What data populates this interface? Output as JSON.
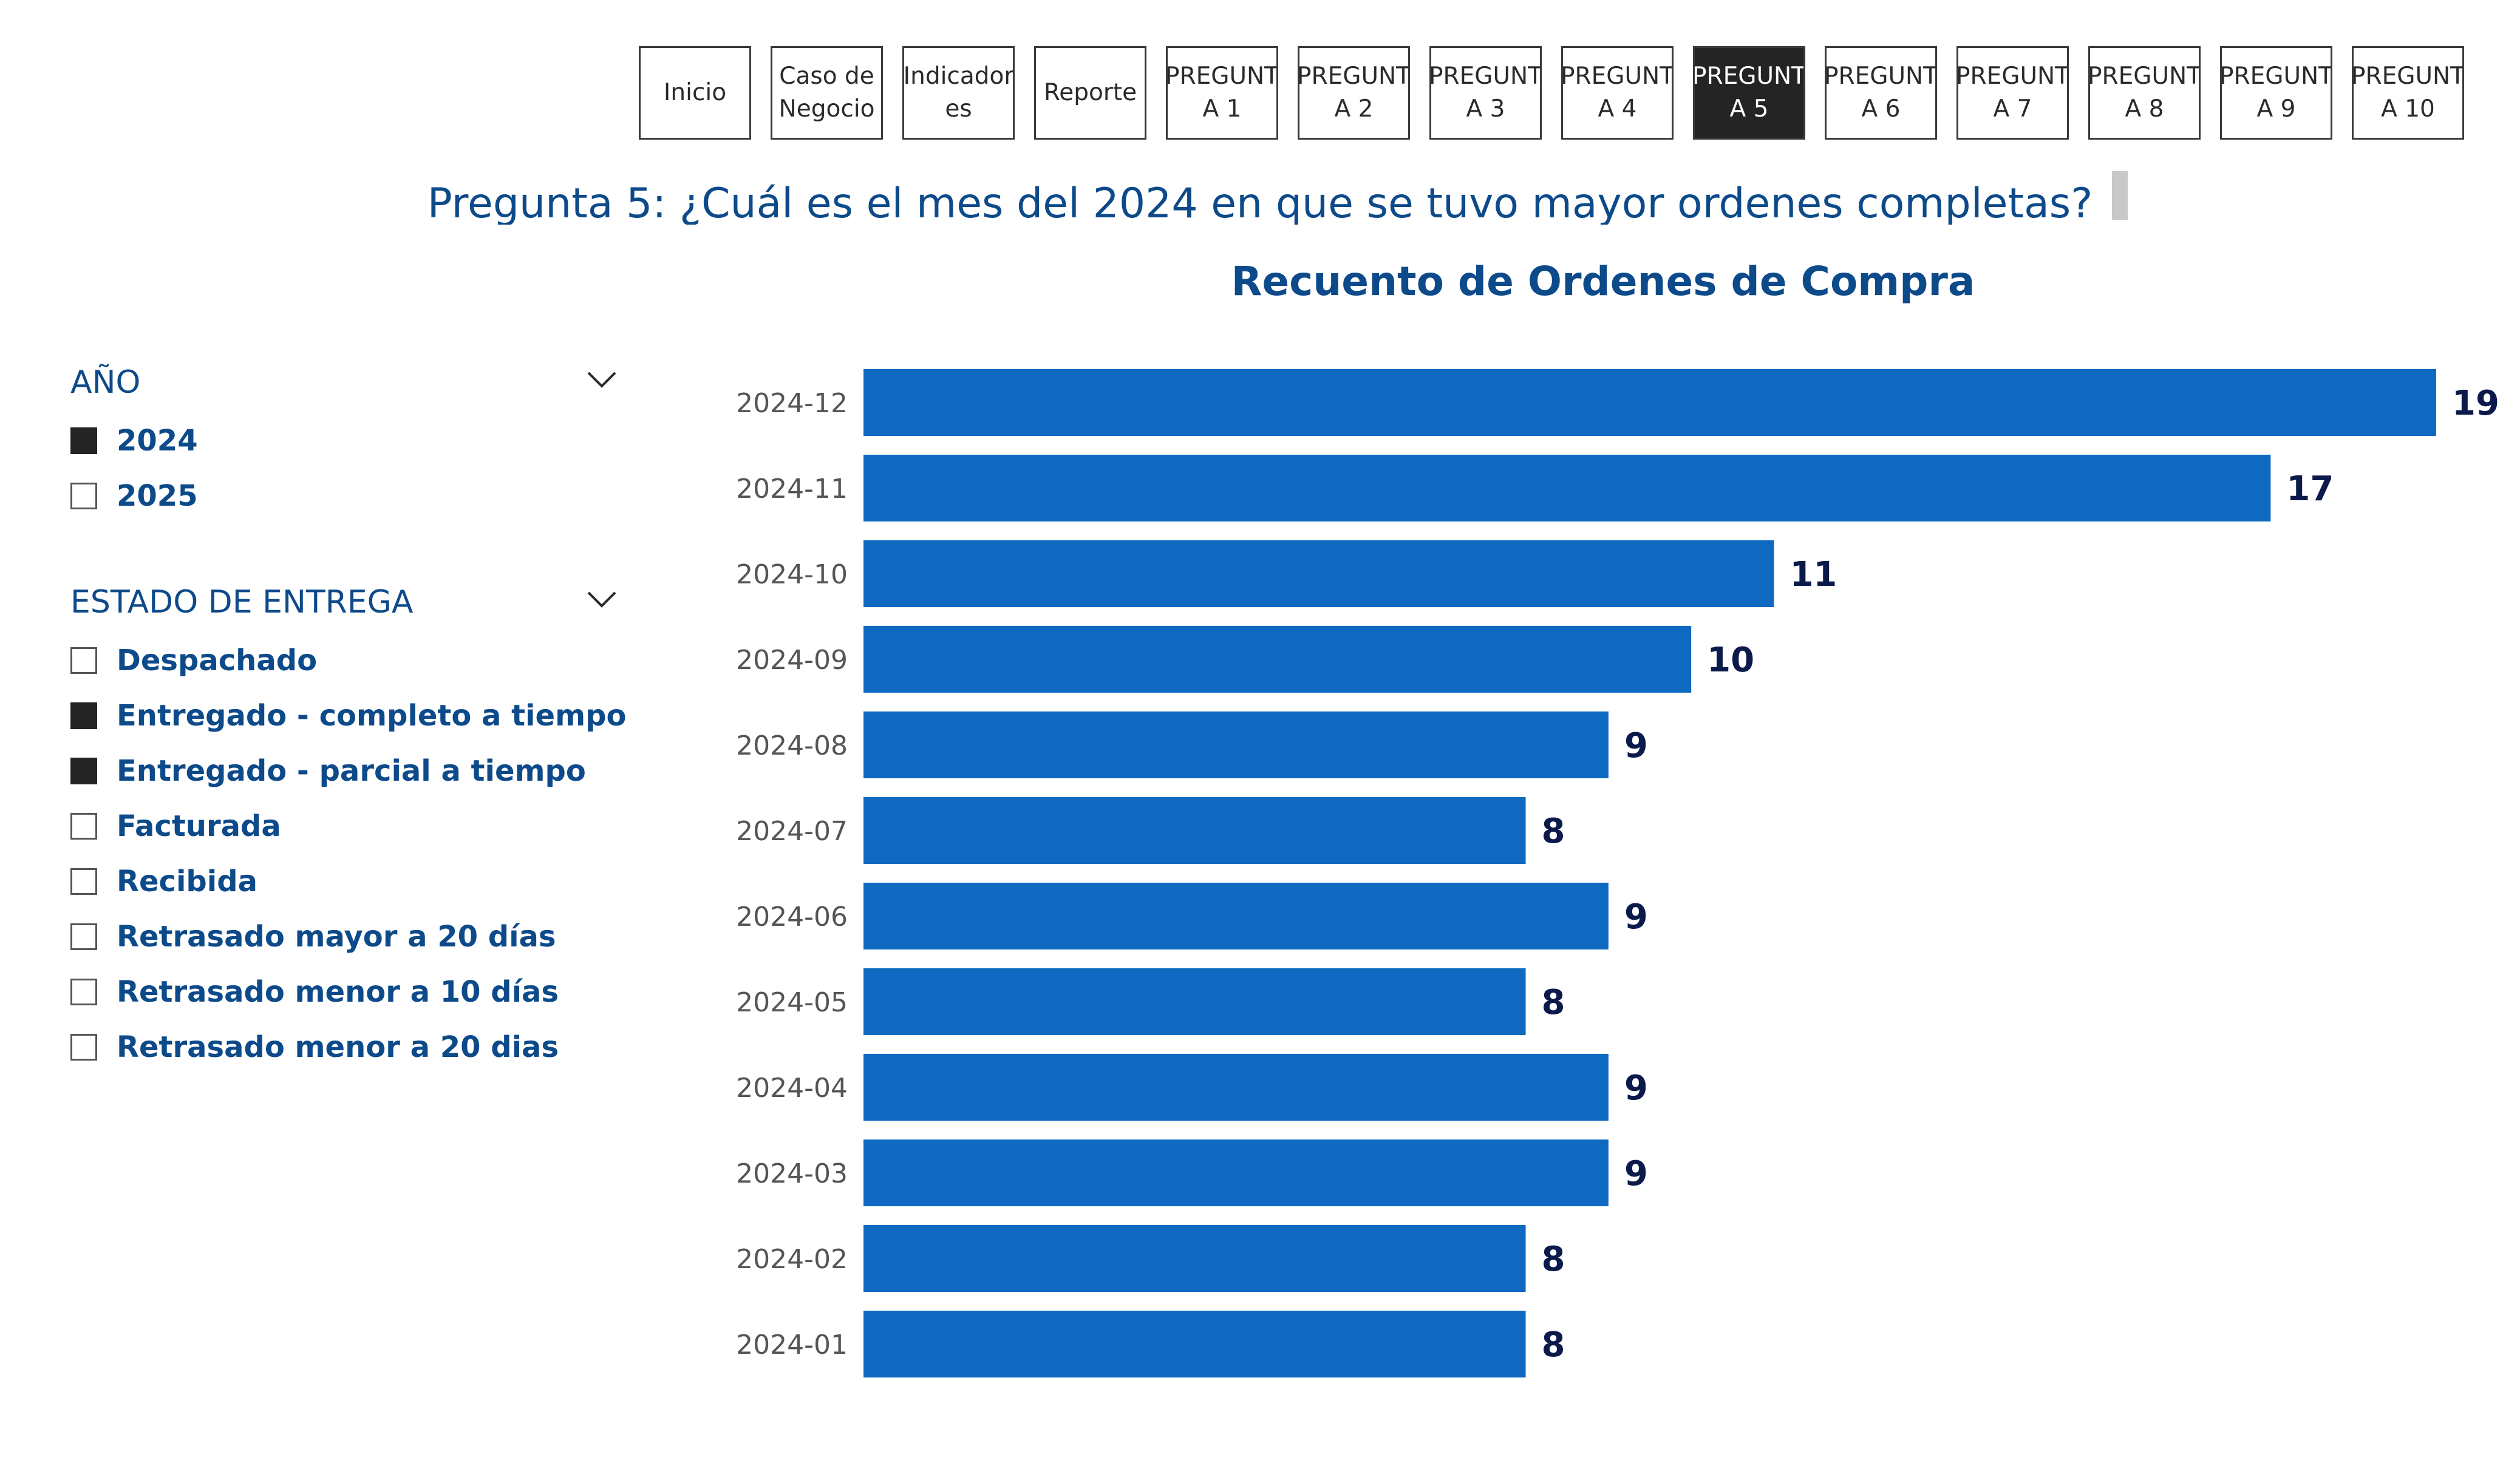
{
  "nav": {
    "buttons": [
      {
        "label": "Inicio",
        "active": false
      },
      {
        "label": "Caso de\nNegocio",
        "active": false
      },
      {
        "label": "Indicador\nes",
        "active": false
      },
      {
        "label": "Reporte",
        "active": false
      },
      {
        "label": "PREGUNT\nA 1",
        "active": false
      },
      {
        "label": "PREGUNT\nA 2",
        "active": false
      },
      {
        "label": "PREGUNT\nA 3",
        "active": false
      },
      {
        "label": "PREGUNT\nA 4",
        "active": false
      },
      {
        "label": "PREGUNT\nA 5",
        "active": true
      },
      {
        "label": "PREGUNT\nA 6",
        "active": false
      },
      {
        "label": "PREGUNT\nA 7",
        "active": false
      },
      {
        "label": "PREGUNT\nA 8",
        "active": false
      },
      {
        "label": "PREGUNT\nA 9",
        "active": false
      },
      {
        "label": "PREGUNT\nA 10",
        "active": false
      }
    ]
  },
  "question": "Pregunta 5: ¿Cuál es el mes del 2024 en que se tuvo mayor ordenes completas?",
  "slicers": {
    "year": {
      "title": "AÑO",
      "items": [
        {
          "label": "2024",
          "checked": true
        },
        {
          "label": "2025",
          "checked": false
        }
      ]
    },
    "state": {
      "title": "ESTADO DE ENTREGA",
      "items": [
        {
          "label": "Despachado",
          "checked": false
        },
        {
          "label": "Entregado - completo a tiempo",
          "checked": true
        },
        {
          "label": "Entregado - parcial a tiempo",
          "checked": true
        },
        {
          "label": "Facturada",
          "checked": false
        },
        {
          "label": "Recibida",
          "checked": false
        },
        {
          "label": "Retrasado mayor a 20 días",
          "checked": false
        },
        {
          "label": "Retrasado menor a 10 días",
          "checked": false
        },
        {
          "label": "Retrasado menor a 20 dias",
          "checked": false
        }
      ]
    }
  },
  "colors": {
    "bar": "#0f69c0",
    "data_label": "#0b1a4a",
    "axis_label": "#555555",
    "title": "#0d4a8a"
  },
  "chart_data": {
    "type": "bar",
    "orientation": "horizontal",
    "title": "Recuento de Ordenes de Compra",
    "categories": [
      "2024-12",
      "2024-11",
      "2024-10",
      "2024-09",
      "2024-08",
      "2024-07",
      "2024-06",
      "2024-05",
      "2024-04",
      "2024-03",
      "2024-02",
      "2024-01"
    ],
    "values": [
      19,
      17,
      11,
      10,
      9,
      8,
      9,
      8,
      9,
      9,
      8,
      8
    ],
    "xlim": [
      0,
      19
    ],
    "grid": false,
    "data_labels": true
  }
}
